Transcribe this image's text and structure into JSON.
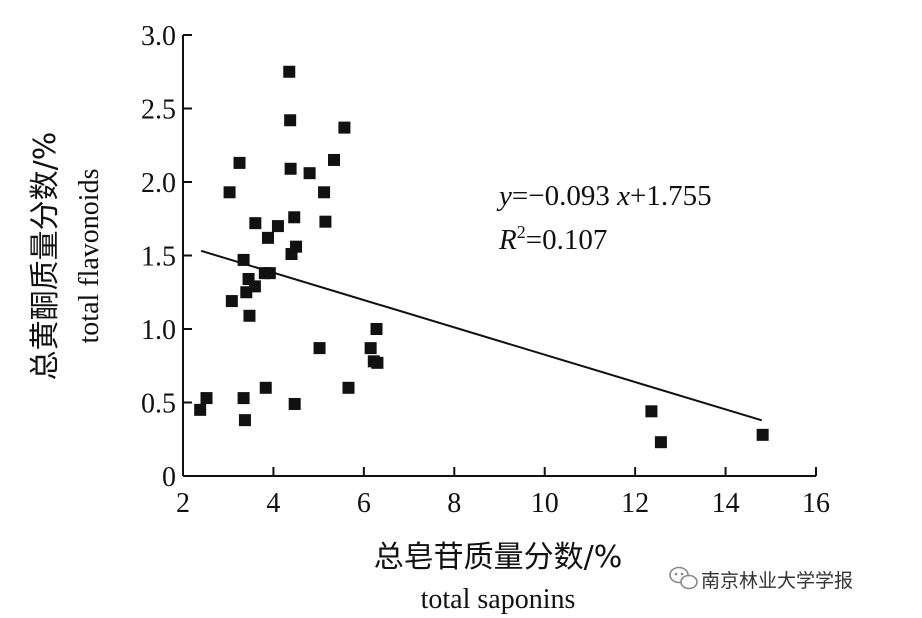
{
  "chart_data": {
    "type": "scatter",
    "xlabel_cn": "总皂苷质量分数/%",
    "xlabel_en": "total saponins",
    "ylabel_cn": "总黄酮质量分数/%",
    "ylabel_en": "total flavonoids",
    "xlim": [
      2,
      16
    ],
    "ylim": [
      0,
      3.0
    ],
    "x_ticks": [
      "2",
      "4",
      "6",
      "8",
      "10",
      "12",
      "14",
      "16"
    ],
    "y_ticks": [
      "0",
      "0.5",
      "1.0",
      "1.5",
      "2.0",
      "2.5",
      "3.0"
    ],
    "points": [
      {
        "x": 2.38,
        "y": 0.45
      },
      {
        "x": 2.52,
        "y": 0.53
      },
      {
        "x": 3.03,
        "y": 1.93
      },
      {
        "x": 3.08,
        "y": 1.19
      },
      {
        "x": 3.25,
        "y": 2.13
      },
      {
        "x": 3.34,
        "y": 0.53
      },
      {
        "x": 3.34,
        "y": 1.47
      },
      {
        "x": 3.37,
        "y": 0.38
      },
      {
        "x": 3.4,
        "y": 1.25
      },
      {
        "x": 3.45,
        "y": 1.34
      },
      {
        "x": 3.47,
        "y": 1.09
      },
      {
        "x": 3.59,
        "y": 1.29
      },
      {
        "x": 3.6,
        "y": 1.72
      },
      {
        "x": 3.81,
        "y": 1.38
      },
      {
        "x": 3.83,
        "y": 0.6
      },
      {
        "x": 3.88,
        "y": 1.62
      },
      {
        "x": 3.92,
        "y": 1.38
      },
      {
        "x": 4.1,
        "y": 1.7
      },
      {
        "x": 4.35,
        "y": 2.75
      },
      {
        "x": 4.37,
        "y": 2.42
      },
      {
        "x": 4.38,
        "y": 2.09
      },
      {
        "x": 4.4,
        "y": 1.51
      },
      {
        "x": 4.46,
        "y": 1.76
      },
      {
        "x": 4.47,
        "y": 0.49
      },
      {
        "x": 4.5,
        "y": 1.56
      },
      {
        "x": 4.8,
        "y": 2.06
      },
      {
        "x": 5.02,
        "y": 0.87
      },
      {
        "x": 5.12,
        "y": 1.93
      },
      {
        "x": 5.15,
        "y": 1.73
      },
      {
        "x": 5.34,
        "y": 2.15
      },
      {
        "x": 5.57,
        "y": 2.37
      },
      {
        "x": 5.66,
        "y": 0.6
      },
      {
        "x": 6.15,
        "y": 0.87
      },
      {
        "x": 6.22,
        "y": 0.78
      },
      {
        "x": 6.28,
        "y": 1.0
      },
      {
        "x": 6.3,
        "y": 0.77
      },
      {
        "x": 12.36,
        "y": 0.44
      },
      {
        "x": 12.57,
        "y": 0.23
      },
      {
        "x": 14.82,
        "y": 0.28
      }
    ],
    "trendline": {
      "slope": -0.093,
      "intercept": 1.755,
      "x_range": [
        2.4,
        14.8
      ]
    },
    "equation_parts": {
      "y_var": "y",
      "mid": "=−0.093 ",
      "x_var": "x",
      "tail": "+1.755",
      "r_var": "R",
      "r_sup": "2",
      "r_tail": "=0.107"
    },
    "grid": false,
    "legend": "none"
  },
  "watermark": {
    "text": "南京林业大学学报",
    "icon": "wechat-icon"
  }
}
